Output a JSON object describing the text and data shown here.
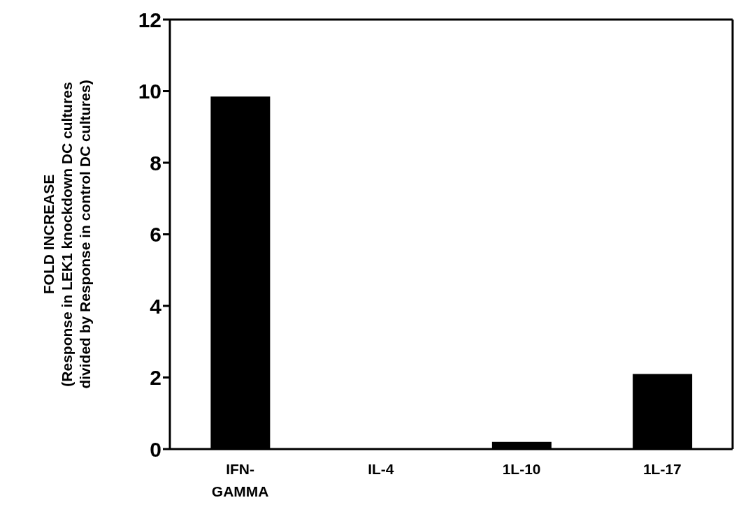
{
  "chart_data": {
    "type": "bar",
    "ylabel": "FOLD INCREASE\n(Response in LEK1 knockdown DC cultures\ndivided by Response in control DC cultures)",
    "categories": [
      "IFN-\nGAMMA",
      "IL-4",
      "1L-10",
      "1L-17"
    ],
    "values": [
      9.85,
      0,
      0.2,
      2.1
    ],
    "color": "#000000",
    "ylim": [
      0,
      12
    ],
    "yticks": [
      0,
      2,
      4,
      6,
      8,
      10,
      12
    ],
    "grid": false,
    "legend": false
  }
}
